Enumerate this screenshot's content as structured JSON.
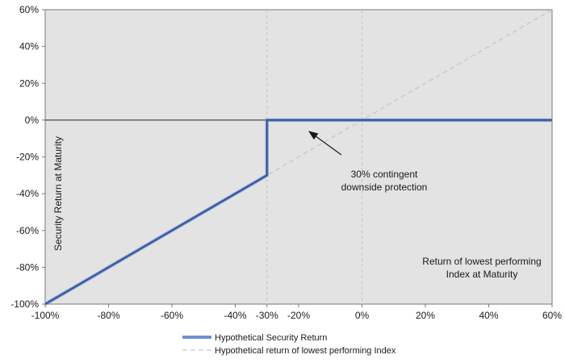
{
  "chart_data": {
    "type": "line",
    "title": "",
    "xlabel": "Return of lowest performing Index at Maturity",
    "ylabel": "Security Return at Maturity",
    "xlim": [
      -100,
      60
    ],
    "ylim": [
      -100,
      60
    ],
    "x_ticks": [
      "-100%",
      "-80%",
      "-60%",
      "-40%",
      "-30%",
      "-20%",
      "0%",
      "20%",
      "40%",
      "60%"
    ],
    "y_ticks": [
      "60%",
      "40%",
      "20%",
      "0%",
      "-20%",
      "-40%",
      "-60%",
      "-80%",
      "-100%"
    ],
    "x_tick_values": [
      -100,
      -80,
      -60,
      -40,
      -30,
      -20,
      0,
      20,
      40,
      60
    ],
    "y_tick_values": [
      60,
      40,
      20,
      0,
      -20,
      -40,
      -60,
      -80,
      -100
    ],
    "series": [
      {
        "name": "Hypothetical Security Return",
        "color": "#6f8fcf",
        "x": [
          -100,
          -30,
          -30,
          60
        ],
        "y": [
          -100,
          -30,
          0,
          0
        ]
      },
      {
        "name": "Hypothetical return of lowest performing Index",
        "color": "#c6c6c6",
        "style": "dashed",
        "x": [
          -100,
          60
        ],
        "y": [
          -100,
          60
        ]
      }
    ],
    "reference_lines": [
      {
        "axis": "x",
        "value": -30,
        "style": "dashed"
      },
      {
        "axis": "x",
        "value": 0,
        "style": "dashed"
      },
      {
        "axis": "y",
        "value": 0,
        "style": "solid"
      }
    ],
    "annotation": {
      "line1": "30% contingent",
      "line2": "downside protection",
      "arrow_from": [
        -13,
        -8
      ],
      "arrow_to": [
        -30,
        0
      ]
    },
    "plot_background": "#e3e3e3",
    "grid": false,
    "legend_position": "bottom-center"
  }
}
